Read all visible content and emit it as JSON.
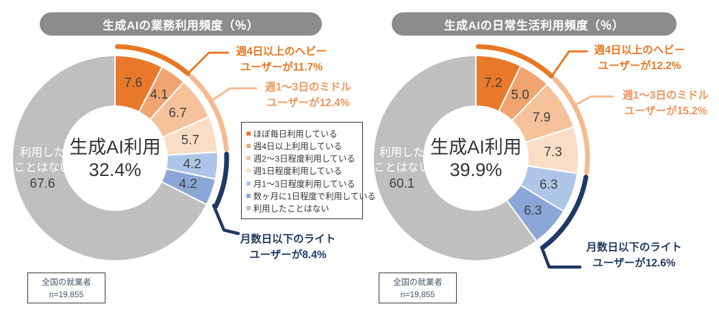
{
  "chart_data": [
    {
      "type": "donut",
      "title": "生成AIの業務利用頻度（％）",
      "center_label": "生成AI利用",
      "center_value": "32.4%",
      "categories": [
        "ほぼ毎日利用している",
        "週4日以上利用している",
        "週2～3日程度利用している",
        "週1日程度利用している",
        "月1～3日程度利用している",
        "数ヶ月に1日程度で利用している",
        "利用したことはない"
      ],
      "values": [
        7.6,
        4.1,
        6.7,
        5.7,
        4.2,
        4.2,
        67.6
      ],
      "colors": [
        "#E8792A",
        "#F0A470",
        "#F5C29C",
        "#FADDC5",
        "#ADC6E8",
        "#8AA7D7",
        "#BFBFBF"
      ],
      "groups": [
        {
          "name": "heavy",
          "label_line1": "週4日以上のヘビー",
          "label_line2": "ユーザーが11.7%",
          "from": 0,
          "to": 2,
          "arc_color": "#E87722",
          "text_color": "#E87722"
        },
        {
          "name": "middle",
          "label_line1": "週1～3日のミドル",
          "label_line2": "ユーザーが12.4%",
          "from": 2,
          "to": 4,
          "arc_color": "#F5BA90",
          "text_color": "#F0955B"
        },
        {
          "name": "light",
          "label_line1": "月数日以下のライト",
          "label_line2": "ユーザーが8.4%",
          "from": 4,
          "to": 6,
          "arc_color": "#1F3864",
          "text_color": "#1F3864"
        }
      ],
      "no_use": {
        "line1": "利用した",
        "line2": "ことはない",
        "value": "67.6"
      },
      "source": {
        "line1": "全国の就業者",
        "line2": "n=19,855"
      }
    },
    {
      "type": "donut",
      "title": "生成AIの日常生活利用頻度（％）",
      "center_label": "生成AI利用",
      "center_value": "39.9%",
      "categories": [
        "ほぼ毎日利用している",
        "週4日以上利用している",
        "週2～3日程度利用している",
        "週1日程度利用している",
        "月1～3日程度利用している",
        "数ヶ月に1日程度で利用している",
        "利用したことはない"
      ],
      "values": [
        7.2,
        5.0,
        7.9,
        7.3,
        6.3,
        6.3,
        60.1
      ],
      "colors": [
        "#E8792A",
        "#F0A470",
        "#F5C29C",
        "#FADDC5",
        "#ADC6E8",
        "#8AA7D7",
        "#BFBFBF"
      ],
      "groups": [
        {
          "name": "heavy",
          "label_line1": "週4日以上のヘビー",
          "label_line2": "ユーザーが12.2%",
          "from": 0,
          "to": 2,
          "arc_color": "#E87722",
          "text_color": "#E87722"
        },
        {
          "name": "middle",
          "label_line1": "週1～3日のミドル",
          "label_line2": "ユーザーが15.2%",
          "from": 2,
          "to": 4,
          "arc_color": "#F5BA90",
          "text_color": "#F0955B"
        },
        {
          "name": "light",
          "label_line1": "月数日以下のライト",
          "label_line2": "ユーザーが12.6%",
          "from": 4,
          "to": 6,
          "arc_color": "#1F3864",
          "text_color": "#1F3864"
        }
      ],
      "no_use": {
        "line1": "利用した",
        "line2": "ことはない",
        "value": "60.1"
      },
      "source": {
        "line1": "全国の就業者",
        "line2": "n=19,855"
      }
    }
  ],
  "legend": {
    "items": [
      {
        "label": "ほぼ毎日利用している",
        "color": "#E8792A"
      },
      {
        "label": "週4日以上利用している",
        "color": "#F0A470"
      },
      {
        "label": "週2～3日程度利用している",
        "color": "#F5C29C"
      },
      {
        "label": "週1日程度利用している",
        "color": "#FADDC5"
      },
      {
        "label": "月1～3日程度利用している",
        "color": "#ADC6E8"
      },
      {
        "label": "数ヶ月に1日程度で利用している",
        "color": "#8AA7D7"
      },
      {
        "label": "利用したことはない",
        "color": "#BFBFBF"
      }
    ]
  }
}
